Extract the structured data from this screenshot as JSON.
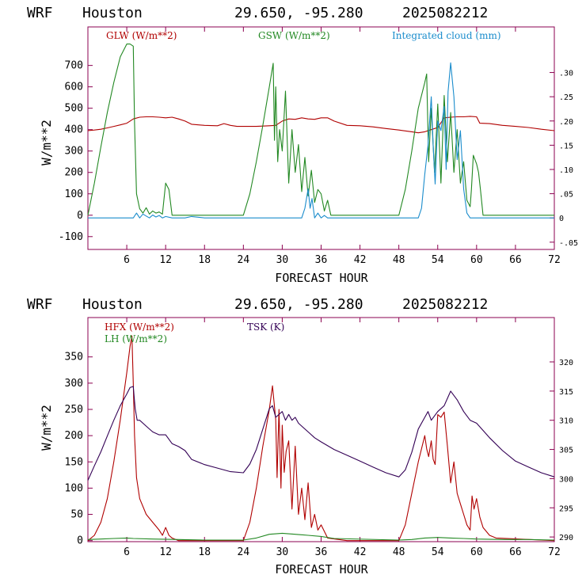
{
  "colors": {
    "glw": "#b00000",
    "gsw": "#228822",
    "cloud": "#1a8ccc",
    "hfx": "#b00000",
    "lh": "#228822",
    "tsk": "#330055",
    "frame": "#8b0050"
  },
  "panels": [
    {
      "header": {
        "model": "WRF",
        "city": "Houston",
        "coords": "29.650, -95.280",
        "date": "2025082212"
      },
      "xlabel": "FORECAST HOUR",
      "ylabel": "W/m**2"
    },
    {
      "header": {
        "model": "WRF",
        "city": "Houston",
        "coords": "29.650, -95.280",
        "date": "2025082212"
      },
      "xlabel": "FORECAST HOUR",
      "ylabel": "W/m**2"
    }
  ],
  "chart_data": [
    {
      "type": "line",
      "xlim": [
        0,
        72
      ],
      "ylim": [
        -160,
        880
      ],
      "x_ticks": [
        6,
        12,
        18,
        24,
        30,
        36,
        42,
        48,
        54,
        60,
        66,
        72
      ],
      "y_ticks": [
        -100,
        0,
        100,
        200,
        300,
        400,
        500,
        600,
        700
      ],
      "y2lim": [
        -0.065,
        0.394
      ],
      "y2_ticks": [
        -0.05,
        0,
        0.05,
        0.1,
        0.15,
        0.2,
        0.25,
        0.3
      ],
      "y2_tick_labels": [
        "-.05",
        "0",
        ".05",
        ".10",
        ".15",
        ".20",
        ".25",
        ".30"
      ],
      "legend": [
        "GLW (W/m**2)",
        "GSW (W/m**2)",
        "Integrated cloud (mm)"
      ],
      "series": [
        {
          "name": "GLW (W/m**2)",
          "axis": "left",
          "x": [
            0,
            1,
            2,
            3,
            4,
            5,
            6,
            6.5,
            7,
            8,
            9,
            10,
            11,
            12,
            13,
            14,
            15,
            16,
            18,
            20,
            21,
            22,
            23,
            24,
            26,
            28,
            29,
            30,
            31,
            32,
            33,
            34,
            35,
            36,
            37,
            38,
            40,
            42,
            44,
            46,
            48,
            50,
            51,
            52,
            53,
            54,
            55,
            56,
            57,
            58,
            59,
            60,
            60.5,
            62,
            64,
            66,
            68,
            70,
            72
          ],
          "y": [
            395,
            398,
            402,
            408,
            415,
            422,
            430,
            440,
            450,
            458,
            460,
            460,
            458,
            455,
            458,
            450,
            440,
            425,
            420,
            418,
            428,
            420,
            415,
            415,
            415,
            418,
            420,
            440,
            450,
            448,
            455,
            450,
            448,
            455,
            455,
            440,
            420,
            418,
            413,
            405,
            398,
            390,
            385,
            390,
            400,
            410,
            455,
            458,
            460,
            460,
            462,
            460,
            430,
            428,
            420,
            415,
            410,
            402,
            395
          ]
        },
        {
          "name": "GSW (W/m**2)",
          "axis": "left",
          "x": [
            0,
            1,
            2,
            3,
            4,
            5,
            6,
            6.5,
            7,
            7.2,
            7.5,
            8,
            8.5,
            9,
            9.5,
            10,
            10.5,
            11,
            11.5,
            12,
            12.5,
            13,
            14,
            20,
            23,
            24,
            25,
            26,
            27,
            28,
            28.6,
            28.8,
            29,
            29.3,
            29.6,
            30,
            30.5,
            31,
            31.5,
            32,
            32.5,
            33,
            33.5,
            34,
            34.5,
            35,
            35.5,
            36,
            36.5,
            37,
            37.5,
            40,
            47,
            48,
            49,
            50,
            51,
            52,
            52.3,
            52.6,
            53,
            53.5,
            54,
            54.5,
            55,
            55.5,
            56,
            56.5,
            57,
            57.5,
            58,
            58.5,
            59,
            59.2,
            59.5,
            60,
            60.3,
            60.6,
            61,
            62,
            72
          ],
          "y": [
            0,
            150,
            320,
            480,
            620,
            740,
            800,
            800,
            790,
            430,
            100,
            30,
            10,
            35,
            5,
            20,
            10,
            15,
            5,
            150,
            120,
            0,
            0,
            0,
            0,
            0,
            100,
            250,
            420,
            600,
            710,
            350,
            600,
            250,
            400,
            300,
            580,
            150,
            400,
            200,
            330,
            110,
            270,
            90,
            210,
            60,
            120,
            100,
            20,
            70,
            0,
            0,
            0,
            0,
            120,
            300,
            500,
            620,
            660,
            250,
            500,
            200,
            520,
            150,
            560,
            250,
            480,
            200,
            400,
            150,
            250,
            70,
            40,
            120,
            280,
            240,
            200,
            120,
            0,
            0,
            0
          ]
        },
        {
          "name": "Integrated cloud (mm)",
          "axis": "right",
          "x": [
            0,
            7,
            7.5,
            8,
            8.5,
            9,
            9.5,
            10,
            10.5,
            11,
            11.5,
            12,
            13,
            15,
            16,
            18,
            33,
            33.5,
            34,
            34.3,
            34.6,
            35,
            35.5,
            36,
            36.5,
            37,
            51,
            51.5,
            52,
            52.5,
            53,
            53.3,
            53.6,
            54,
            54.5,
            55,
            55.3,
            55.6,
            56,
            56.5,
            57,
            57.5,
            58,
            58.5,
            59,
            72
          ],
          "y": [
            0,
            0,
            0.01,
            0,
            0.008,
            0.004,
            0,
            0.006,
            0.002,
            0.005,
            0,
            0.003,
            0,
            0,
            0.003,
            0,
            0,
            0.02,
            0.06,
            0.02,
            0.04,
            0,
            0.01,
            0,
            0.005,
            0,
            0,
            0.02,
            0.09,
            0.15,
            0.25,
            0.15,
            0.07,
            0.2,
            0.18,
            0.23,
            0.1,
            0.26,
            0.32,
            0.25,
            0.12,
            0.18,
            0.06,
            0.01,
            0,
            0
          ]
        }
      ]
    },
    {
      "type": "line",
      "xlim": [
        0,
        72
      ],
      "ylim": [
        -2,
        425
      ],
      "x_ticks": [
        6,
        12,
        18,
        24,
        30,
        36,
        42,
        48,
        54,
        60,
        66,
        72
      ],
      "y_ticks": [
        0,
        50,
        100,
        150,
        200,
        250,
        300,
        350
      ],
      "y2lim": [
        289.2,
        327.6
      ],
      "y2_ticks": [
        290,
        295,
        300,
        305,
        310,
        315,
        320
      ],
      "legend": [
        "HFX (W/m**2)",
        "LH  (W/m**2)",
        "TSK (K)"
      ],
      "series": [
        {
          "name": "HFX (W/m**2)",
          "axis": "left",
          "x": [
            0,
            1,
            2,
            3,
            4,
            5,
            6,
            6.5,
            6.8,
            7,
            7.2,
            7.5,
            8,
            9,
            10,
            11,
            11.5,
            12,
            12.5,
            13,
            14,
            18,
            22,
            24,
            25,
            26,
            27,
            28,
            28.5,
            29,
            29.2,
            29.5,
            29.8,
            30,
            30.3,
            30.6,
            31,
            31.5,
            32,
            32.5,
            33,
            33.5,
            34,
            34.5,
            35,
            35.5,
            36,
            37,
            40,
            48,
            49,
            50,
            51,
            52,
            52.3,
            52.6,
            53,
            53.3,
            53.6,
            54,
            54.5,
            55,
            55.5,
            56,
            56.5,
            57,
            57.5,
            58,
            58.5,
            59,
            59.3,
            59.6,
            60,
            60.5,
            61,
            62,
            63,
            72
          ],
          "y": [
            0,
            10,
            35,
            80,
            150,
            230,
            320,
            370,
            390,
            300,
            200,
            120,
            80,
            50,
            35,
            20,
            10,
            25,
            10,
            5,
            0,
            0,
            0,
            0,
            35,
            100,
            180,
            250,
            295,
            230,
            120,
            250,
            100,
            220,
            130,
            170,
            190,
            60,
            180,
            50,
            100,
            40,
            110,
            25,
            50,
            20,
            30,
            5,
            0,
            0,
            30,
            90,
            150,
            200,
            175,
            160,
            190,
            155,
            145,
            240,
            235,
            245,
            180,
            110,
            150,
            90,
            70,
            50,
            30,
            20,
            85,
            60,
            80,
            45,
            25,
            10,
            5,
            0
          ]
        },
        {
          "name": "LH  (W/m**2)",
          "axis": "left",
          "x": [
            0,
            2,
            4,
            6,
            7,
            10,
            14,
            18,
            24,
            26,
            28,
            30,
            32,
            34,
            36,
            38,
            48,
            50,
            52,
            54,
            56,
            58,
            60,
            64,
            68,
            72
          ],
          "y": [
            2,
            3,
            4,
            5,
            4,
            3,
            2,
            1,
            1,
            5,
            12,
            14,
            12,
            10,
            8,
            4,
            1,
            2,
            5,
            6,
            5,
            4,
            3,
            2,
            2,
            1
          ]
        },
        {
          "name": "TSK (K)",
          "axis": "right",
          "x": [
            0,
            1,
            2,
            3,
            4,
            5,
            6,
            6.5,
            7,
            7.3,
            7.6,
            8,
            9,
            10,
            11,
            12,
            13,
            14,
            15,
            16,
            18,
            20,
            22,
            24,
            25,
            26,
            27,
            28,
            28.5,
            29,
            30,
            30.5,
            31,
            31.5,
            32,
            32.5,
            33,
            34,
            35,
            36,
            38,
            40,
            42,
            44,
            46,
            48,
            49,
            50,
            51,
            52,
            52.5,
            53,
            54,
            55,
            56,
            57,
            58,
            59,
            60,
            62,
            64,
            66,
            68,
            70,
            72
          ],
          "y": [
            299.7,
            302.2,
            304.6,
            307.3,
            310,
            312.5,
            314.5,
            315.6,
            315.8,
            312,
            310,
            310,
            309,
            308,
            307.5,
            307.5,
            306,
            305.5,
            304.8,
            303.3,
            302.4,
            301.8,
            301.2,
            301,
            302.5,
            305,
            308.5,
            312,
            312.5,
            310.5,
            311.5,
            310,
            311,
            310,
            310.5,
            309.5,
            309,
            308,
            307,
            306.3,
            305,
            304,
            303,
            302,
            301,
            300.3,
            301.5,
            304.5,
            308.5,
            310.5,
            311.5,
            310,
            311.5,
            312.5,
            315,
            313.5,
            311.5,
            310,
            309.5,
            307,
            304.8,
            303,
            302,
            301,
            300.3
          ]
        }
      ]
    }
  ]
}
